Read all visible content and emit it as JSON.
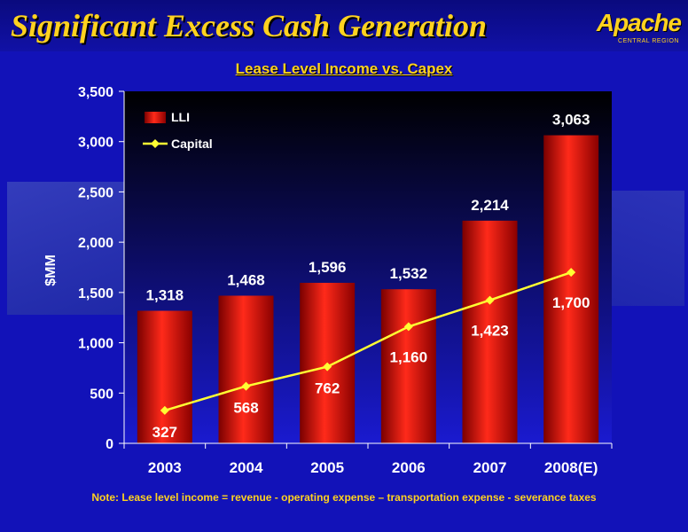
{
  "header": {
    "title": "Significant Excess Cash Generation",
    "logo_text": "Apache",
    "logo_subtext": "CENTRAL REGION"
  },
  "colors": {
    "background": "#1212b8",
    "title": "#ffd21f",
    "bar": "#e01414",
    "line": "#ffff33",
    "plot_top": "#000000",
    "plot_bottom": "#1a1ad0"
  },
  "chart_data": {
    "type": "bar",
    "title": "Lease Level Income vs. Capex",
    "xlabel": "",
    "ylabel": "$MM",
    "ylim": [
      0,
      3500
    ],
    "yticks": [
      0,
      500,
      1000,
      1500,
      2000,
      2500,
      3000,
      3500
    ],
    "ytick_labels": [
      "0",
      "500",
      "1,000",
      "1,500",
      "2,000",
      "2,500",
      "3,000",
      "3,500"
    ],
    "categories": [
      "2003",
      "2004",
      "2005",
      "2006",
      "2007",
      "2008(E)"
    ],
    "legend_position": "top-left",
    "grid": false,
    "series": [
      {
        "name": "LLI",
        "type": "bar",
        "values": [
          1318,
          1468,
          1596,
          1532,
          2214,
          3063
        ],
        "labels": [
          "1,318",
          "1,468",
          "1,596",
          "1,532",
          "2,214",
          "3,063"
        ]
      },
      {
        "name": "Capital",
        "type": "line",
        "values": [
          327,
          568,
          762,
          1160,
          1423,
          1700
        ],
        "labels": [
          "327",
          "568",
          "762",
          "1,160",
          "1,423",
          "1,700"
        ]
      }
    ]
  },
  "footnote": "Note: Lease level income =  revenue - operating expense – transportation expense - severance taxes"
}
